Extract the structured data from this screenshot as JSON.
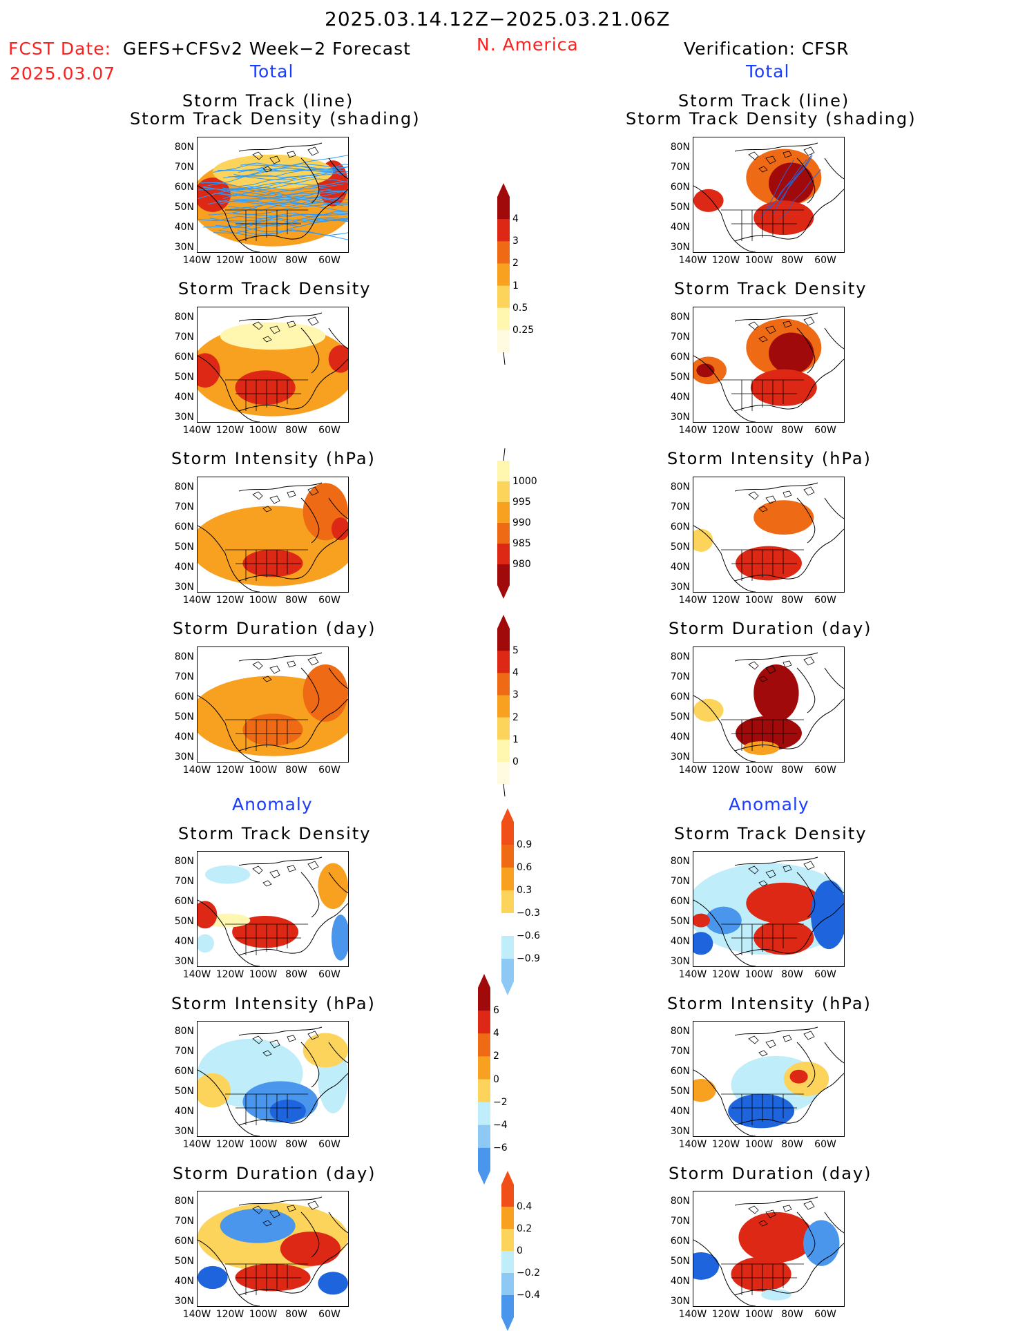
{
  "header": {
    "date_range": "2025.03.14.12Z−2025.03.21.06Z",
    "fcst_label": "FCST Date:",
    "fcst_date": "2025.03.07",
    "forecast_name": "GEFS+CFSv2 Week−2 Forecast",
    "region": "N. America",
    "verification": "Verification: CFSR",
    "total_left": "Total",
    "total_right": "Total",
    "anomaly_left": "Anomaly",
    "anomaly_right": "Anomaly"
  },
  "panel_titles": {
    "track_line": "Storm Track (line)",
    "track_shading": "Storm Track Density (shading)",
    "density": "Storm Track Density",
    "intensity": "Storm Intensity (hPa)",
    "duration": "Storm Duration (day)"
  },
  "axes": {
    "lat_labels": [
      "80N",
      "70N",
      "60N",
      "50N",
      "40N",
      "30N"
    ],
    "lon_labels": [
      "140W",
      "120W",
      "100W",
      "80W",
      "60W"
    ]
  },
  "colorbars": {
    "total_density": {
      "labels": [
        "4",
        "3",
        "2",
        "1",
        "0.5",
        "0.25"
      ]
    },
    "total_intensity": {
      "labels": [
        "1000",
        "995",
        "990",
        "985",
        "980"
      ]
    },
    "total_duration": {
      "labels": [
        "5",
        "4",
        "3",
        "2",
        "1",
        "0"
      ]
    },
    "anom_density": {
      "labels": [
        "0.9",
        "0.6",
        "0.3",
        "−0.3",
        "−0.6",
        "−0.9"
      ]
    },
    "anom_intensity": {
      "labels": [
        "6",
        "4",
        "2",
        "0",
        "−2",
        "−4",
        "−6"
      ]
    },
    "anom_duration": {
      "labels": [
        "0.4",
        "0.2",
        "0",
        "−0.2",
        "−0.4"
      ]
    }
  },
  "colors": {
    "pale_yellow": "#fff6b0",
    "yellow": "#fcd45c",
    "orange": "#f8a020",
    "dark_orange": "#ee6a14",
    "red": "#dc2814",
    "dark_red": "#a00a0a",
    "light_blue": "#bfeefa",
    "mid_blue": "#8ec8f4",
    "blue": "#4a96ec",
    "dark_blue": "#1e64dc",
    "track_line": "#2a9bff"
  }
}
